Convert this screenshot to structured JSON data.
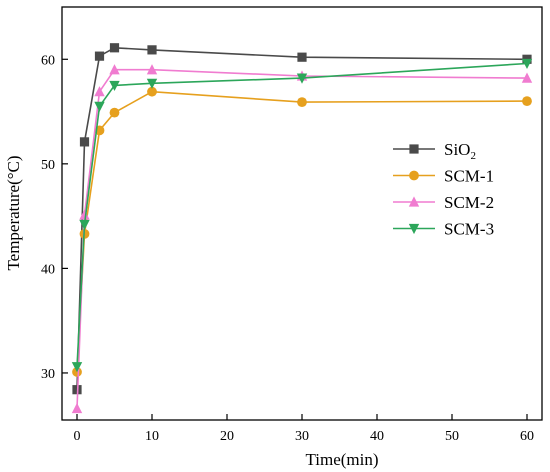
{
  "chart_data": {
    "type": "line",
    "xlabel": "Time(min)",
    "ylabel": "Temperature(°C)",
    "xlim": [
      -2,
      62
    ],
    "ylim": [
      25.5,
      65
    ],
    "xticks": [
      0,
      10,
      20,
      30,
      40,
      50,
      60
    ],
    "yticks": [
      30,
      40,
      50,
      60
    ],
    "legend_position": "right",
    "x": [
      0,
      1,
      3,
      5,
      10,
      30,
      60
    ],
    "series": [
      {
        "name": "SiO",
        "name_sub": "2",
        "marker": "square",
        "color": "#4a4a4a",
        "values": [
          28.4,
          52.1,
          60.3,
          61.1,
          60.9,
          60.2,
          60.0
        ]
      },
      {
        "name": "SCM-1",
        "marker": "circle",
        "color": "#e6a01e",
        "values": [
          30.1,
          43.3,
          53.2,
          54.9,
          56.9,
          55.9,
          56.0
        ]
      },
      {
        "name": "SCM-2",
        "marker": "triangle-up",
        "color": "#f07cd0",
        "values": [
          26.6,
          45.1,
          56.9,
          59.0,
          59.0,
          58.4,
          58.2
        ]
      },
      {
        "name": "SCM-3",
        "marker": "triangle-down",
        "color": "#2ca65a",
        "values": [
          30.6,
          44.2,
          55.5,
          57.5,
          57.7,
          58.2,
          59.6
        ]
      }
    ]
  }
}
